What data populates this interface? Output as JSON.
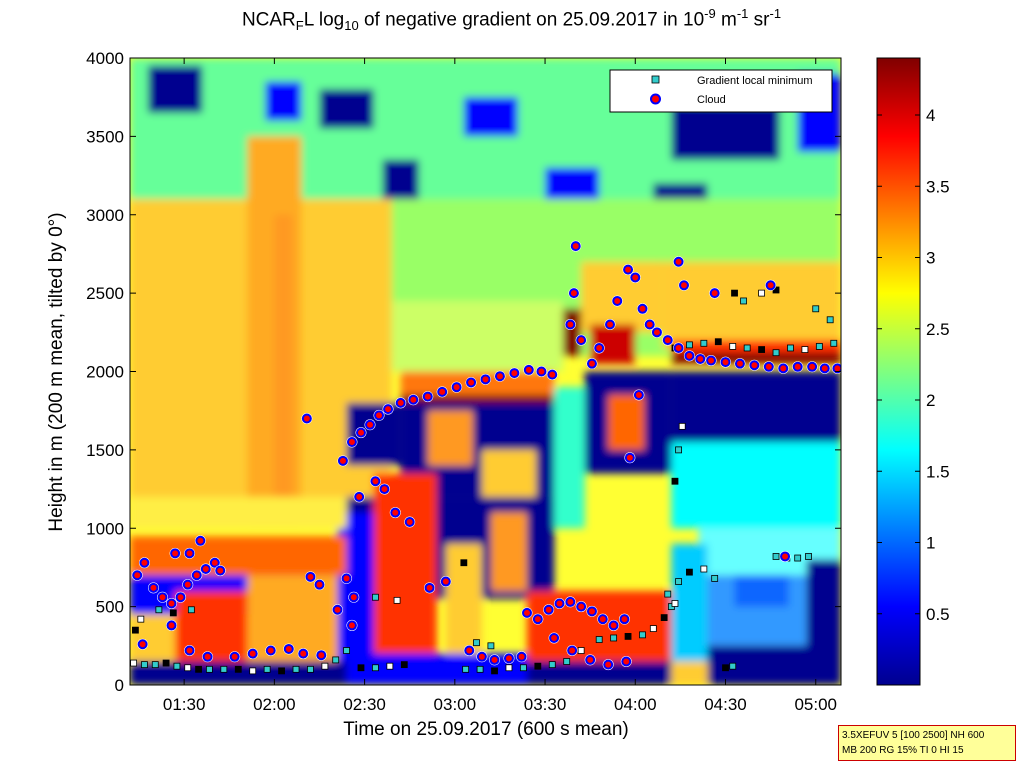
{
  "chart_data": {
    "type": "heatmap",
    "title": {
      "part1": "NCAR",
      "sub1": "F",
      "part2": "L log",
      "sub2": "10",
      "part3": " of negative gradient on 25.09.2017 in 10",
      "sup1": "-9",
      "part4": " m",
      "sup2": "-1",
      "part5": " sr",
      "sup3": "-1"
    },
    "xlabel": "Time on 25.09.2017 (600 s mean)",
    "ylabel": "Height in m (200 m mean, tilted by 0°)",
    "xlim_hours": [
      1.2,
      5.14
    ],
    "ylim": [
      0,
      4000
    ],
    "x_ticks": [
      "01:30",
      "02:00",
      "02:30",
      "03:00",
      "03:30",
      "04:00",
      "04:30",
      "05:00"
    ],
    "y_ticks": [
      0,
      500,
      1000,
      1500,
      2000,
      2500,
      3000,
      3500,
      4000
    ],
    "colorbar": {
      "min": 0,
      "max": 4.4,
      "ticks": [
        "0.5",
        "1",
        "1.5",
        "2",
        "2.5",
        "3",
        "3.5",
        "4"
      ],
      "colormap": "jet"
    },
    "legend": {
      "position": "top-right",
      "entries": [
        {
          "label": "Gradient local minimum",
          "marker": "square",
          "color": "#33cccc"
        },
        {
          "label": "Cloud",
          "marker": "circle",
          "color": "#ff0000",
          "edge": "#0000ff"
        }
      ]
    },
    "grid": false,
    "cloud_series": [
      [
        1.24,
        700
      ],
      [
        1.28,
        780
      ],
      [
        1.33,
        620
      ],
      [
        1.38,
        560
      ],
      [
        1.43,
        520
      ],
      [
        1.48,
        560
      ],
      [
        1.52,
        640
      ],
      [
        1.57,
        700
      ],
      [
        1.62,
        740
      ],
      [
        1.67,
        780
      ],
      [
        1.7,
        730
      ],
      [
        1.45,
        840
      ],
      [
        1.53,
        840
      ],
      [
        1.59,
        920
      ],
      [
        1.27,
        260
      ],
      [
        1.43,
        380
      ],
      [
        1.53,
        220
      ],
      [
        1.63,
        180
      ],
      [
        1.78,
        180
      ],
      [
        1.88,
        200
      ],
      [
        1.98,
        220
      ],
      [
        2.08,
        230
      ],
      [
        2.16,
        200
      ],
      [
        2.26,
        190
      ],
      [
        2.18,
        1700
      ],
      [
        2.2,
        690
      ],
      [
        2.25,
        640
      ],
      [
        2.38,
        1430
      ],
      [
        2.43,
        1550
      ],
      [
        2.48,
        1610
      ],
      [
        2.53,
        1660
      ],
      [
        2.58,
        1720
      ],
      [
        2.63,
        1760
      ],
      [
        2.7,
        1800
      ],
      [
        2.77,
        1820
      ],
      [
        2.85,
        1840
      ],
      [
        2.93,
        1870
      ],
      [
        3.01,
        1900
      ],
      [
        3.09,
        1930
      ],
      [
        3.17,
        1950
      ],
      [
        3.25,
        1970
      ],
      [
        3.33,
        1990
      ],
      [
        3.41,
        2010
      ],
      [
        3.48,
        2000
      ],
      [
        3.54,
        1980
      ],
      [
        2.47,
        1200
      ],
      [
        2.56,
        1300
      ],
      [
        2.61,
        1250
      ],
      [
        2.67,
        1100
      ],
      [
        2.75,
        1040
      ],
      [
        2.4,
        680
      ],
      [
        2.44,
        560
      ],
      [
        2.35,
        480
      ],
      [
        2.43,
        380
      ],
      [
        3.4,
        460
      ],
      [
        3.46,
        420
      ],
      [
        3.52,
        480
      ],
      [
        3.58,
        520
      ],
      [
        3.64,
        530
      ],
      [
        3.7,
        500
      ],
      [
        3.76,
        470
      ],
      [
        3.82,
        420
      ],
      [
        3.88,
        380
      ],
      [
        3.94,
        420
      ],
      [
        3.55,
        300
      ],
      [
        3.65,
        220
      ],
      [
        3.75,
        160
      ],
      [
        3.85,
        130
      ],
      [
        3.95,
        150
      ],
      [
        3.08,
        220
      ],
      [
        3.15,
        180
      ],
      [
        3.22,
        160
      ],
      [
        3.3,
        170
      ],
      [
        3.37,
        180
      ],
      [
        3.64,
        2300
      ],
      [
        3.66,
        2500
      ],
      [
        3.67,
        2800
      ],
      [
        3.7,
        2200
      ],
      [
        3.76,
        2050
      ],
      [
        3.8,
        2150
      ],
      [
        3.86,
        2300
      ],
      [
        3.9,
        2450
      ],
      [
        3.96,
        2650
      ],
      [
        4.0,
        2600
      ],
      [
        4.04,
        2400
      ],
      [
        4.08,
        2300
      ],
      [
        4.12,
        2250
      ],
      [
        4.18,
        2200
      ],
      [
        4.24,
        2150
      ],
      [
        4.3,
        2100
      ],
      [
        4.36,
        2080
      ],
      [
        4.42,
        2070
      ],
      [
        4.5,
        2060
      ],
      [
        4.58,
        2050
      ],
      [
        4.66,
        2040
      ],
      [
        4.74,
        2030
      ],
      [
        4.82,
        2020
      ],
      [
        4.9,
        2030
      ],
      [
        4.98,
        2030
      ],
      [
        5.05,
        2020
      ],
      [
        5.12,
        2020
      ],
      [
        4.24,
        2700
      ],
      [
        4.27,
        2550
      ],
      [
        4.44,
        2500
      ],
      [
        4.75,
        2550
      ],
      [
        4.02,
        1850
      ],
      [
        3.97,
        1450
      ],
      [
        4.83,
        820
      ],
      [
        2.86,
        620
      ],
      [
        2.95,
        660
      ]
    ],
    "gradient_min_series": [
      [
        1.22,
        140
      ],
      [
        1.28,
        130
      ],
      [
        1.34,
        130
      ],
      [
        1.4,
        140
      ],
      [
        1.46,
        120
      ],
      [
        1.52,
        110
      ],
      [
        1.58,
        100
      ],
      [
        1.64,
        100
      ],
      [
        1.72,
        100
      ],
      [
        1.8,
        100
      ],
      [
        1.88,
        90
      ],
      [
        1.96,
        100
      ],
      [
        2.04,
        90
      ],
      [
        2.12,
        100
      ],
      [
        2.2,
        100
      ],
      [
        2.28,
        120
      ],
      [
        2.34,
        160
      ],
      [
        2.4,
        220
      ],
      [
        2.48,
        110
      ],
      [
        2.56,
        110
      ],
      [
        2.64,
        120
      ],
      [
        2.72,
        130
      ],
      [
        3.06,
        100
      ],
      [
        3.14,
        100
      ],
      [
        3.22,
        90
      ],
      [
        3.3,
        110
      ],
      [
        3.38,
        110
      ],
      [
        3.46,
        120
      ],
      [
        3.54,
        130
      ],
      [
        3.62,
        150
      ],
      [
        3.7,
        220
      ],
      [
        3.8,
        290
      ],
      [
        3.88,
        300
      ],
      [
        3.96,
        310
      ],
      [
        4.04,
        320
      ],
      [
        4.1,
        360
      ],
      [
        4.16,
        430
      ],
      [
        4.2,
        500
      ],
      [
        4.24,
        660
      ],
      [
        4.3,
        720
      ],
      [
        4.38,
        740
      ],
      [
        4.44,
        680
      ],
      [
        4.5,
        110
      ],
      [
        4.54,
        120
      ],
      [
        4.78,
        820
      ],
      [
        4.84,
        810
      ],
      [
        4.9,
        810
      ],
      [
        4.96,
        820
      ],
      [
        4.22,
        1300
      ],
      [
        4.24,
        1500
      ],
      [
        4.26,
        1650
      ],
      [
        4.22,
        2150
      ],
      [
        4.3,
        2170
      ],
      [
        4.38,
        2180
      ],
      [
        4.46,
        2190
      ],
      [
        4.54,
        2160
      ],
      [
        4.62,
        2150
      ],
      [
        4.7,
        2140
      ],
      [
        4.78,
        2120
      ],
      [
        4.86,
        2150
      ],
      [
        4.94,
        2140
      ],
      [
        5.02,
        2160
      ],
      [
        5.1,
        2180
      ],
      [
        4.55,
        2500
      ],
      [
        4.6,
        2450
      ],
      [
        4.7,
        2500
      ],
      [
        4.78,
        2520
      ],
      [
        5.0,
        2400
      ],
      [
        5.08,
        2330
      ],
      [
        1.23,
        350
      ],
      [
        1.26,
        420
      ],
      [
        1.36,
        480
      ],
      [
        1.44,
        460
      ],
      [
        1.54,
        480
      ],
      [
        2.56,
        560
      ],
      [
        2.68,
        540
      ],
      [
        3.12,
        270
      ],
      [
        3.2,
        250
      ],
      [
        3.05,
        780
      ],
      [
        4.18,
        580
      ],
      [
        4.22,
        520
      ]
    ]
  },
  "info_box": {
    "line1": "3.5XEFUV 5 [100 2500] NH 600",
    "line2": "MB 200 RG 15% TI 0 HI 15"
  }
}
